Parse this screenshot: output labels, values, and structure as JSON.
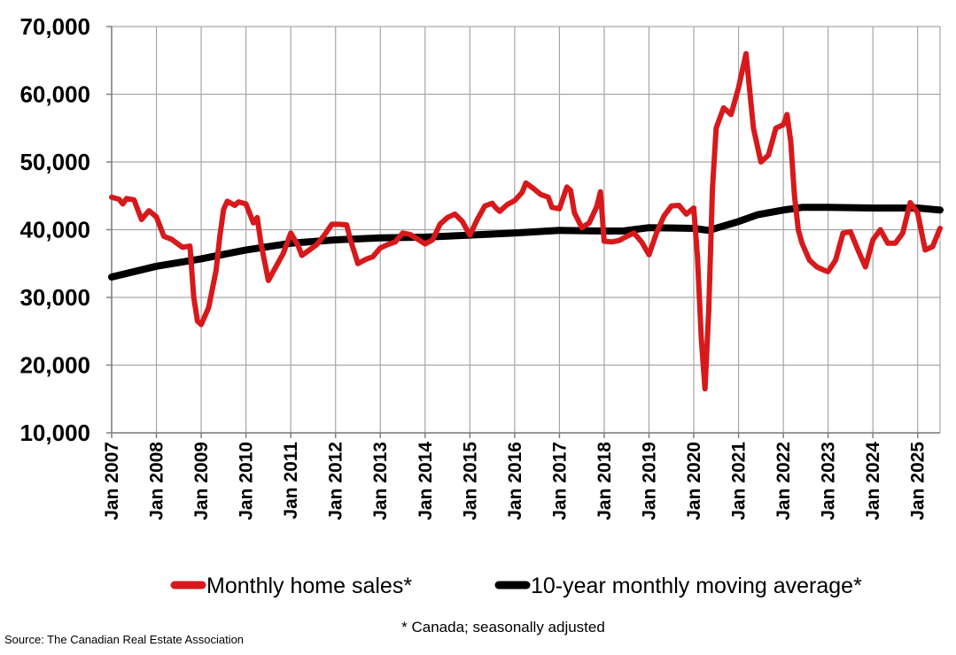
{
  "chart_data": {
    "type": "line",
    "title": "",
    "xlabel": "",
    "ylabel": "",
    "ylim": [
      10000,
      70000
    ],
    "yticks": [
      10000,
      20000,
      30000,
      40000,
      50000,
      60000,
      70000
    ],
    "ytick_labels": [
      "10,000",
      "20,000",
      "30,000",
      "40,000",
      "50,000",
      "60,000",
      "70,000"
    ],
    "xlim": [
      "2007-01",
      "2025-07"
    ],
    "xtick_labels": [
      "Jan 2007",
      "Jan 2008",
      "Jan 2009",
      "Jan 2010",
      "Jan 2011",
      "Jan 2012",
      "Jan 2013",
      "Jan 2014",
      "Jan 2015",
      "Jan 2016",
      "Jan 2017",
      "Jan 2018",
      "Jan 2019",
      "Jan 2020",
      "Jan 2021",
      "Jan 2022",
      "Jan 2023",
      "Jan 2024",
      "Jan 2025"
    ],
    "grid": true,
    "legend_position": "bottom",
    "note": "* Canada; seasonally adjusted",
    "source": "Source: The Canadian Real Estate Association",
    "series": [
      {
        "name": "Monthly home sales*",
        "color": "#d7191c",
        "points": [
          [
            "2007-01",
            44800
          ],
          [
            "2007-03",
            44500
          ],
          [
            "2007-04",
            43800
          ],
          [
            "2007-05",
            44600
          ],
          [
            "2007-07",
            44400
          ],
          [
            "2007-09",
            41500
          ],
          [
            "2007-11",
            42800
          ],
          [
            "2008-01",
            41900
          ],
          [
            "2008-03",
            39000
          ],
          [
            "2008-05",
            38600
          ],
          [
            "2008-08",
            37400
          ],
          [
            "2008-10",
            37600
          ],
          [
            "2008-11",
            30000
          ],
          [
            "2008-12",
            26500
          ],
          [
            "2009-01",
            26000
          ],
          [
            "2009-03",
            28500
          ],
          [
            "2009-05",
            34000
          ],
          [
            "2009-06",
            39000
          ],
          [
            "2009-07",
            43000
          ],
          [
            "2009-08",
            44200
          ],
          [
            "2009-10",
            43600
          ],
          [
            "2009-11",
            44100
          ],
          [
            "2010-01",
            43800
          ],
          [
            "2010-03",
            41000
          ],
          [
            "2010-04",
            41800
          ],
          [
            "2010-05",
            38000
          ],
          [
            "2010-07",
            32500
          ],
          [
            "2010-09",
            34500
          ],
          [
            "2010-11",
            36500
          ],
          [
            "2011-01",
            39500
          ],
          [
            "2011-03",
            37600
          ],
          [
            "2011-04",
            36200
          ],
          [
            "2011-06",
            37000
          ],
          [
            "2011-08",
            37800
          ],
          [
            "2011-10",
            39200
          ],
          [
            "2011-12",
            40800
          ],
          [
            "2012-02",
            40800
          ],
          [
            "2012-04",
            40700
          ],
          [
            "2012-05",
            38500
          ],
          [
            "2012-07",
            35000
          ],
          [
            "2012-09",
            35600
          ],
          [
            "2012-11",
            36000
          ],
          [
            "2013-01",
            37300
          ],
          [
            "2013-03",
            37800
          ],
          [
            "2013-05",
            38200
          ],
          [
            "2013-07",
            39500
          ],
          [
            "2013-09",
            39300
          ],
          [
            "2013-11",
            38600
          ],
          [
            "2014-01",
            37900
          ],
          [
            "2014-03",
            38500
          ],
          [
            "2014-05",
            40800
          ],
          [
            "2014-07",
            41800
          ],
          [
            "2014-09",
            42300
          ],
          [
            "2014-11",
            41200
          ],
          [
            "2015-01",
            39200
          ],
          [
            "2015-03",
            41500
          ],
          [
            "2015-05",
            43500
          ],
          [
            "2015-07",
            43900
          ],
          [
            "2015-08",
            43200
          ],
          [
            "2015-09",
            42700
          ],
          [
            "2015-11",
            43700
          ],
          [
            "2016-01",
            44300
          ],
          [
            "2016-03",
            45500
          ],
          [
            "2016-04",
            46900
          ],
          [
            "2016-06",
            46100
          ],
          [
            "2016-08",
            45200
          ],
          [
            "2016-10",
            44800
          ],
          [
            "2016-11",
            43300
          ],
          [
            "2017-01",
            43100
          ],
          [
            "2017-03",
            46300
          ],
          [
            "2017-04",
            45800
          ],
          [
            "2017-05",
            42500
          ],
          [
            "2017-07",
            40300
          ],
          [
            "2017-09",
            41000
          ],
          [
            "2017-11",
            43400
          ],
          [
            "2017-12",
            45600
          ],
          [
            "2018-01",
            38300
          ],
          [
            "2018-03",
            38200
          ],
          [
            "2018-05",
            38400
          ],
          [
            "2018-07",
            39000
          ],
          [
            "2018-09",
            39500
          ],
          [
            "2018-11",
            38200
          ],
          [
            "2019-01",
            36300
          ],
          [
            "2019-03",
            39500
          ],
          [
            "2019-05",
            42000
          ],
          [
            "2019-07",
            43500
          ],
          [
            "2019-09",
            43600
          ],
          [
            "2019-11",
            42300
          ],
          [
            "2020-01",
            43200
          ],
          [
            "2020-02",
            36000
          ],
          [
            "2020-03",
            24000
          ],
          [
            "2020-04",
            16500
          ],
          [
            "2020-05",
            28000
          ],
          [
            "2020-06",
            46000
          ],
          [
            "2020-07",
            55000
          ],
          [
            "2020-09",
            58000
          ],
          [
            "2020-11",
            57000
          ],
          [
            "2021-01",
            61000
          ],
          [
            "2021-03",
            66000
          ],
          [
            "2021-05",
            55000
          ],
          [
            "2021-07",
            50000
          ],
          [
            "2021-09",
            51000
          ],
          [
            "2021-11",
            55000
          ],
          [
            "2022-01",
            55500
          ],
          [
            "2022-02",
            57000
          ],
          [
            "2022-03",
            53000
          ],
          [
            "2022-04",
            45000
          ],
          [
            "2022-05",
            40000
          ],
          [
            "2022-06",
            38000
          ],
          [
            "2022-08",
            35500
          ],
          [
            "2022-10",
            34500
          ],
          [
            "2022-12",
            34000
          ],
          [
            "2023-01",
            33800
          ],
          [
            "2023-03",
            35500
          ],
          [
            "2023-05",
            39500
          ],
          [
            "2023-07",
            39700
          ],
          [
            "2023-09",
            37000
          ],
          [
            "2023-11",
            34500
          ],
          [
            "2024-01",
            38500
          ],
          [
            "2024-03",
            40000
          ],
          [
            "2024-05",
            38000
          ],
          [
            "2024-07",
            38000
          ],
          [
            "2024-09",
            39500
          ],
          [
            "2024-11",
            44000
          ],
          [
            "2025-01",
            42500
          ],
          [
            "2025-03",
            37000
          ],
          [
            "2025-05",
            37500
          ],
          [
            "2025-07",
            40200
          ]
        ]
      },
      {
        "name": "10-year monthly moving average*",
        "color": "#000000",
        "points": [
          [
            "2007-01",
            33000
          ],
          [
            "2008-01",
            34600
          ],
          [
            "2009-01",
            35700
          ],
          [
            "2010-01",
            37000
          ],
          [
            "2011-01",
            38000
          ],
          [
            "2012-01",
            38500
          ],
          [
            "2013-01",
            38800
          ],
          [
            "2014-01",
            38900
          ],
          [
            "2015-01",
            39200
          ],
          [
            "2016-01",
            39500
          ],
          [
            "2017-01",
            39900
          ],
          [
            "2018-01",
            39800
          ],
          [
            "2018-06",
            39800
          ],
          [
            "2019-01",
            40300
          ],
          [
            "2020-01",
            40200
          ],
          [
            "2020-05",
            39900
          ],
          [
            "2021-01",
            41200
          ],
          [
            "2021-06",
            42200
          ],
          [
            "2022-01",
            42900
          ],
          [
            "2022-06",
            43300
          ],
          [
            "2023-01",
            43300
          ],
          [
            "2024-01",
            43200
          ],
          [
            "2025-01",
            43200
          ],
          [
            "2025-07",
            42900
          ]
        ]
      }
    ]
  }
}
